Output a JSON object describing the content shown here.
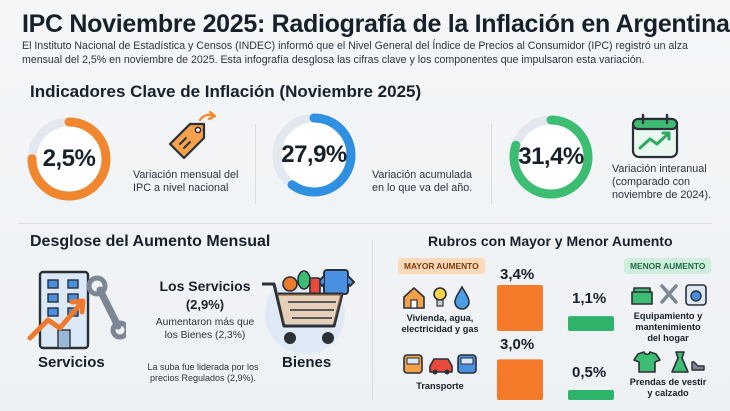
{
  "title": "IPC Noviembre 2025: Radiografía de la Inflación en Argentina",
  "intro": "El Instituto Nacional de Estadística y Censos (INDEC) informó que el Nivel General del Índice de Precios al Consumidor (IPC) registró un alza mensual del 2,5% en noviembre de 2025. Esta infografía desglosa las cifras clave y los componentes que impulsaron esta variación.",
  "kpis_heading": "Indicadores Clave de Inflación (Noviembre 2025)",
  "kpis": [
    {
      "value": "2,5%",
      "fraction": 0.75,
      "color": "#f2862e",
      "desc_lines": [
        "Variación mensual del",
        "IPC a nivel nacional"
      ],
      "icon": "price-tag-arrow-icon"
    },
    {
      "value": "27,9%",
      "fraction": 0.6,
      "color": "#2f8fe0",
      "desc_lines": [
        "Variación acumulada",
        "en lo que va del año."
      ],
      "icon": "none"
    },
    {
      "value": "31,4%",
      "fraction": 0.8,
      "color": "#3dbd72",
      "desc_lines": [
        "Variación interanual",
        "(comparado con",
        "noviembre de 2024)."
      ],
      "icon": "calendar-trend-icon"
    }
  ],
  "breakdown": {
    "heading": "Desglose del Aumento Mensual",
    "services_label": "Servicios",
    "goods_label": "Bienes",
    "title": "Los Servicios",
    "subtitle": "(2,9%)",
    "text_lines": [
      "Aumentaron más que",
      "los Bienes (2,3%)"
    ],
    "note_lines": [
      "La suba fue liderada por los",
      "precios Regulados (2,9%)."
    ]
  },
  "rubros": {
    "heading": "Rubros con Mayor y Menor Aumento",
    "mayor_badge": "MAYOR AUMENTO",
    "menor_badge": "MENOR AUMENTO",
    "colors": {
      "mayor": "#f47a2a",
      "menor": "#2fb36a"
    },
    "rows": [
      {
        "mayor_label_lines": [
          "Vivienda, agua,",
          "electricidad y gas"
        ],
        "mayor_value": 3.4,
        "mayor_text": "3,4%",
        "menor_label_lines": [
          "Equipamiento y",
          "mantenimiento",
          "del hogar"
        ],
        "menor_value": 1.1,
        "menor_text": "1,1%"
      },
      {
        "mayor_label_lines": [
          "Transporte"
        ],
        "mayor_value": 3.0,
        "mayor_text": "3,0%",
        "menor_label_lines": [
          "Prendas de vestir",
          "y calzado"
        ],
        "menor_value": 0.5,
        "menor_text": "0,5%"
      }
    ]
  }
}
